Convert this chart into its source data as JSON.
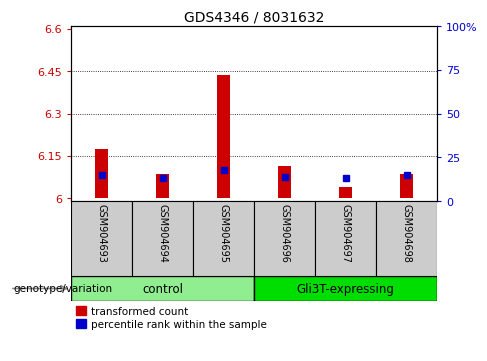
{
  "title": "GDS4346 / 8031632",
  "samples": [
    "GSM904693",
    "GSM904694",
    "GSM904695",
    "GSM904696",
    "GSM904697",
    "GSM904698"
  ],
  "red_values": [
    6.175,
    6.085,
    6.435,
    6.115,
    6.04,
    6.085
  ],
  "blue_values_pct": [
    15,
    13,
    18,
    14,
    13,
    15
  ],
  "ylim_left": [
    5.99,
    6.61
  ],
  "ylim_right": [
    0,
    100
  ],
  "yticks_left": [
    6.0,
    6.15,
    6.3,
    6.45,
    6.6
  ],
  "ytick_labels_left": [
    "6",
    "6.15",
    "6.3",
    "6.45",
    "6.6"
  ],
  "yticks_right": [
    0,
    25,
    50,
    75,
    100
  ],
  "ytick_labels_right": [
    "0",
    "25",
    "50",
    "75",
    "100%"
  ],
  "groups": [
    {
      "label": "control",
      "samples": [
        0,
        1,
        2
      ],
      "color": "#90EE90"
    },
    {
      "label": "Gli3T-expressing",
      "samples": [
        3,
        4,
        5
      ],
      "color": "#00DD00"
    }
  ],
  "genotype_label": "genotype/variation",
  "legend_red": "transformed count",
  "legend_blue": "percentile rank within the sample",
  "red_color": "#CC0000",
  "blue_color": "#0000CC",
  "baseline": 6.0,
  "bg_color": "#FFFFFF",
  "sample_bg_color": "#CCCCCC",
  "left_axis_color": "#CC0000",
  "right_axis_color": "#0000CC",
  "title_fontsize": 10,
  "tick_fontsize": 8,
  "sample_fontsize": 7,
  "group_fontsize": 8.5,
  "legend_fontsize": 7.5
}
